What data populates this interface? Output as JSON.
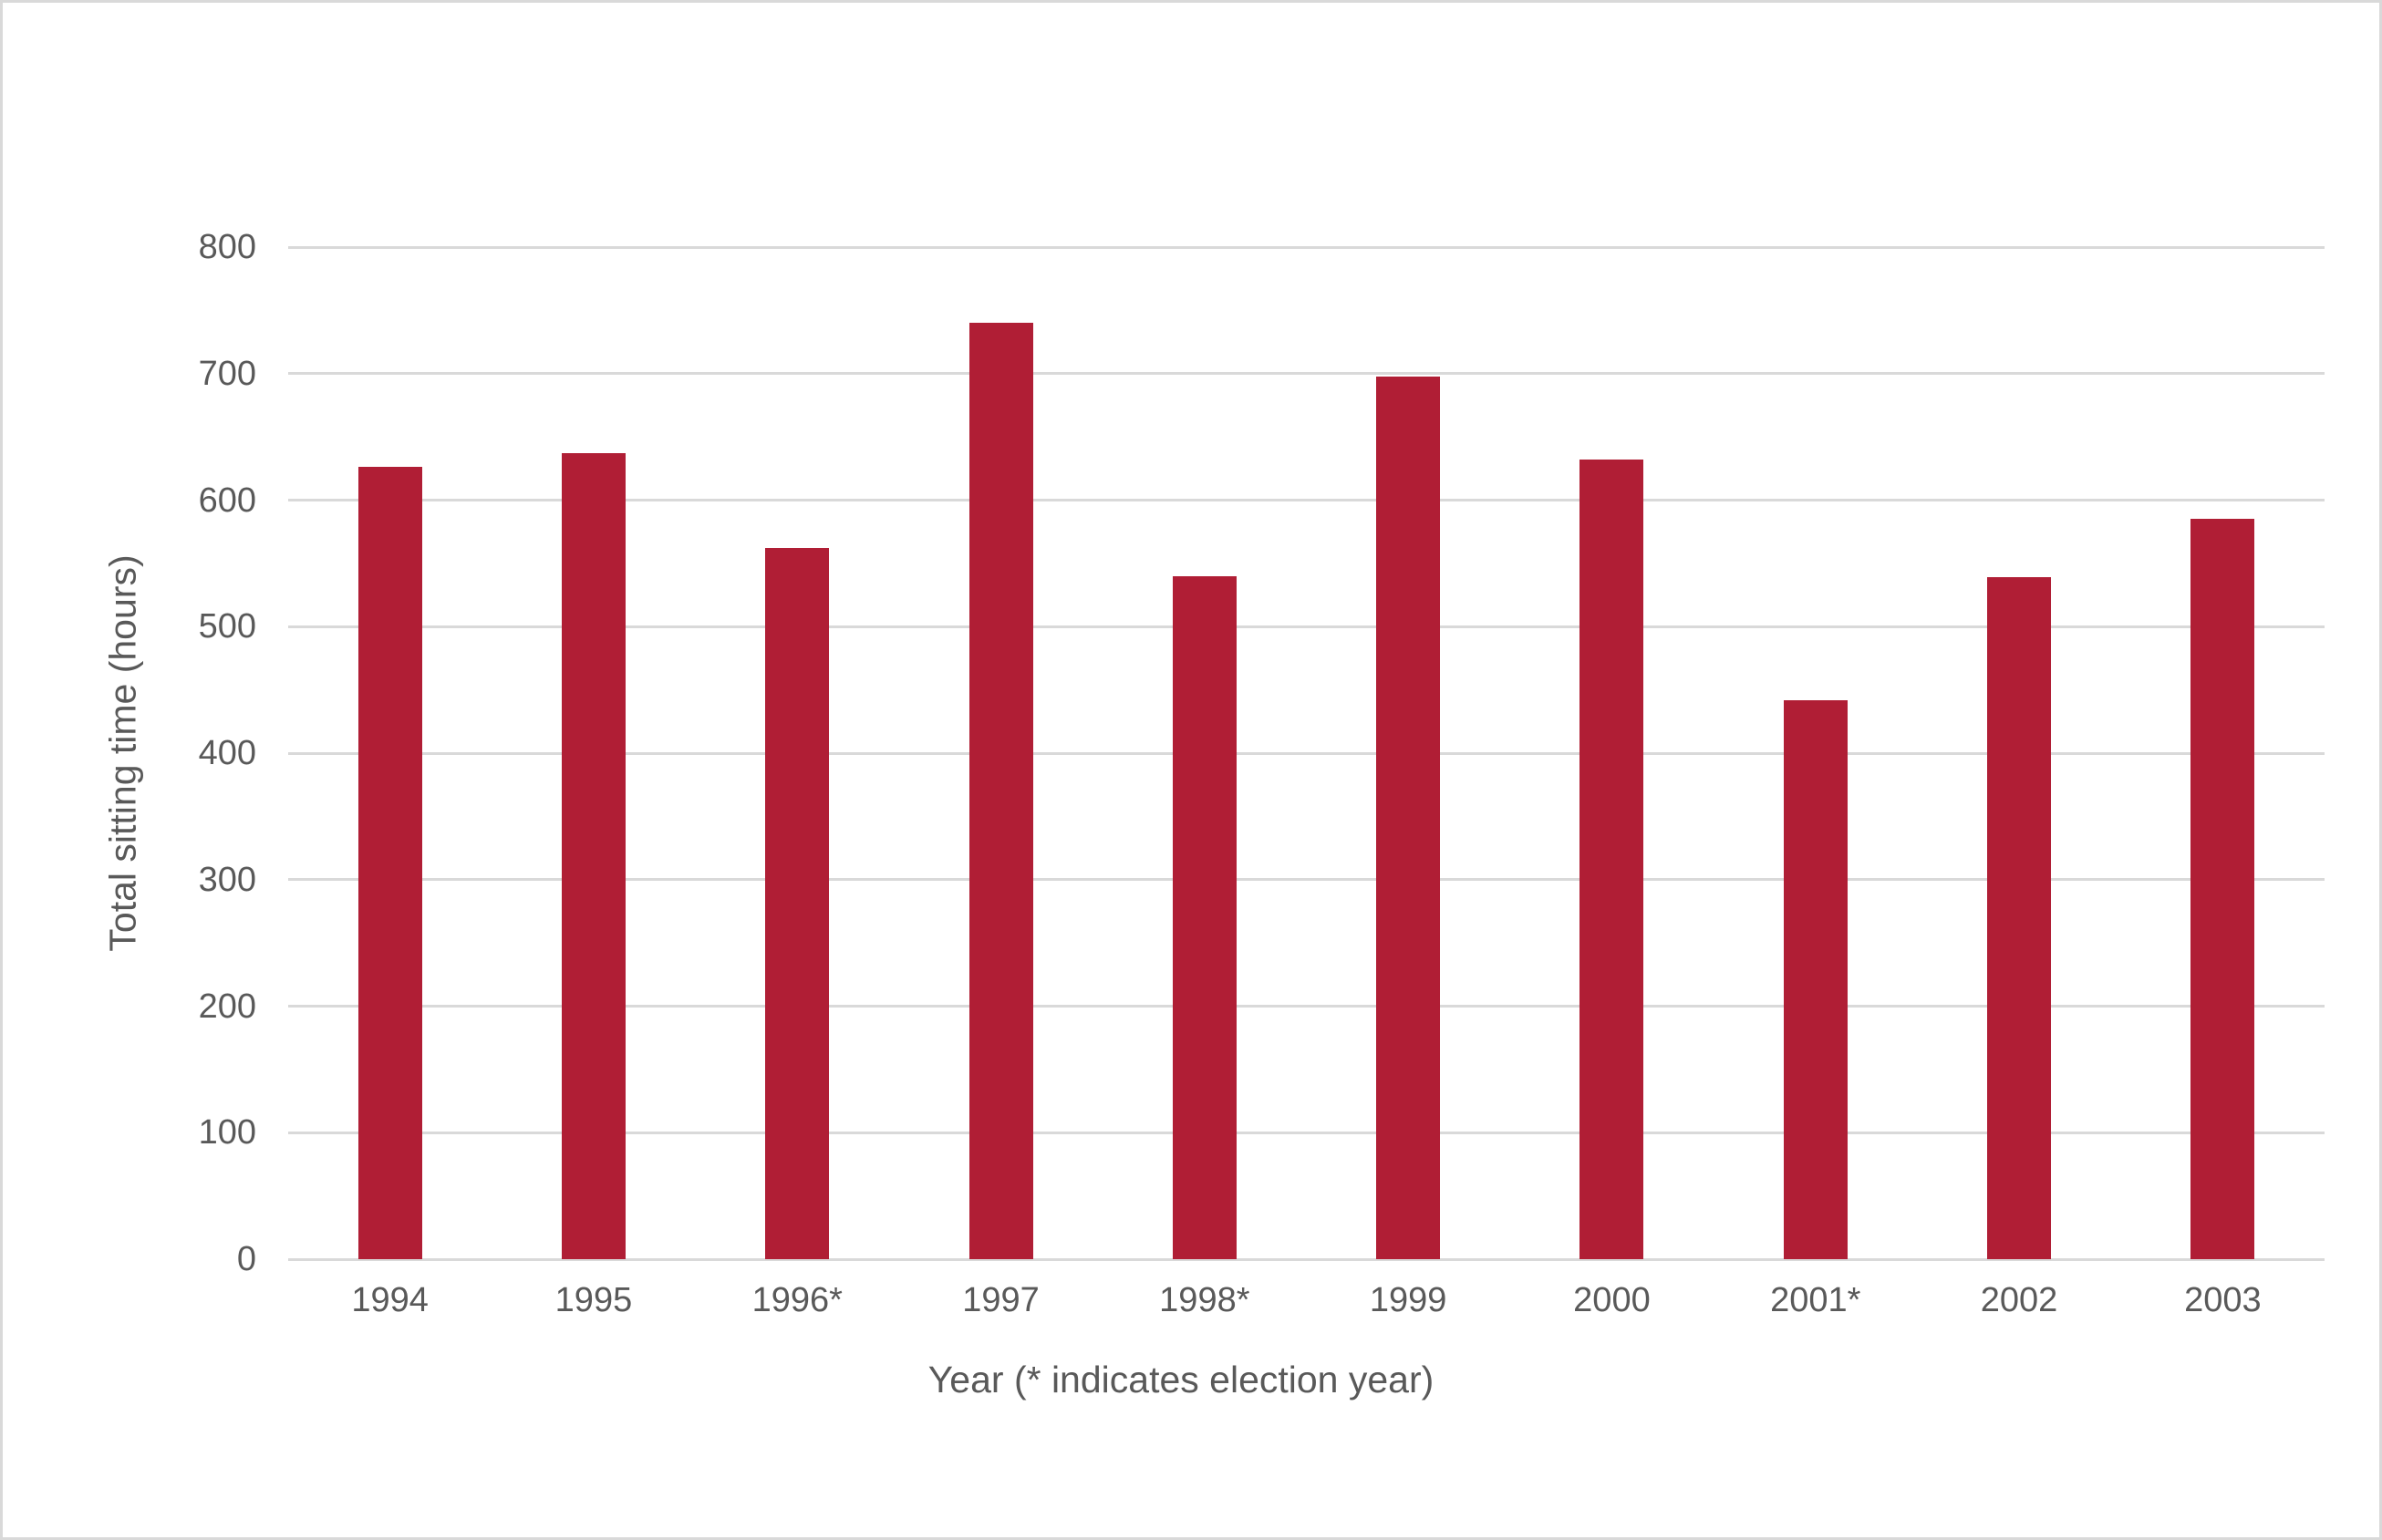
{
  "chart_data": {
    "type": "bar",
    "title": "",
    "categories": [
      "1994",
      "1995",
      "1996*",
      "1997",
      "1998*",
      "1999",
      "2000",
      "2001*",
      "2002",
      "2003"
    ],
    "values": [
      626,
      637,
      562,
      740,
      540,
      698,
      632,
      442,
      539,
      585
    ],
    "series_name": "Total sitting time",
    "xlabel": "Year (* indicates election year)",
    "ylabel": "Total sitting time (hours)",
    "ylim": [
      0,
      800
    ],
    "yticks": [
      0,
      100,
      200,
      300,
      400,
      500,
      600,
      700,
      800
    ],
    "grid": "horizontal-only",
    "legend": "none",
    "bar_color": "#b01e35",
    "gridline_color": "#d9d9d9",
    "axis_text_color": "#595959",
    "background_color": "#ffffff",
    "border_color": "#d9d9d9"
  }
}
